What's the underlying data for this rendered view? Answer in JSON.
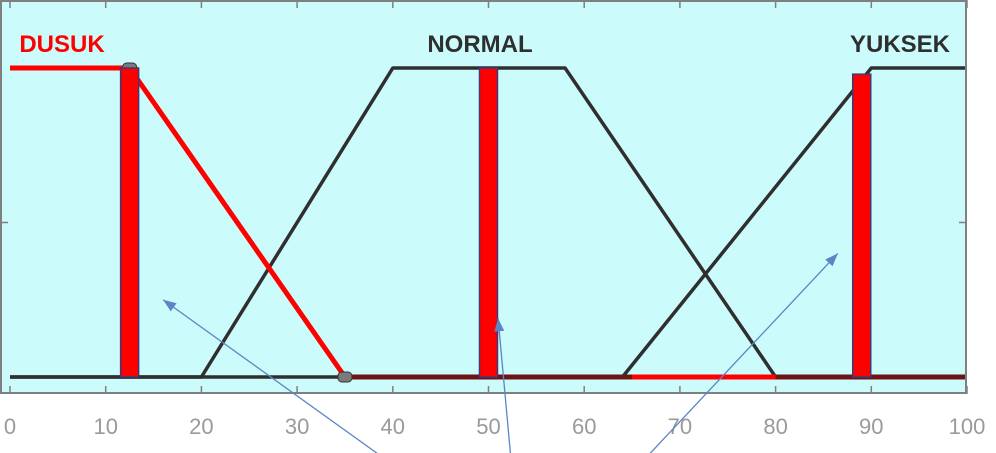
{
  "colors": {
    "background": "#ffffff",
    "plot_background": "#ccfbfb",
    "axes_border": "#7f7f7f",
    "mf_line": "#2f2f2f",
    "highlight": "#ff0000",
    "marker_bar": "#ff0000",
    "marker_edge": "#3b3b7a",
    "arrow": "#5b86c5",
    "tick_label": "#9a9a9a"
  },
  "chart_data": {
    "type": "line",
    "xlim": [
      0,
      100
    ],
    "ylim": [
      0,
      1
    ],
    "x_ticks": [
      0,
      10,
      20,
      30,
      40,
      50,
      60,
      70,
      80,
      90,
      100
    ],
    "x_tick_labels": [
      "0",
      "10",
      "20",
      "30",
      "40",
      "50",
      "60",
      "70",
      "80",
      "90",
      "100"
    ],
    "series": [
      {
        "name": "DUSUK",
        "label_color": "#ff0000",
        "highlighted": true,
        "points": [
          [
            0,
            1
          ],
          [
            12.5,
            1
          ],
          [
            35,
            0
          ],
          [
            100,
            0
          ]
        ]
      },
      {
        "name": "NORMAL",
        "label_color": "#2f2f2f",
        "highlighted": false,
        "points": [
          [
            0,
            0
          ],
          [
            20,
            0
          ],
          [
            40,
            1
          ],
          [
            58,
            1
          ],
          [
            80,
            0
          ],
          [
            100,
            0
          ]
        ]
      },
      {
        "name": "YUKSEK",
        "label_color": "#2f2f2f",
        "highlighted": false,
        "points": [
          [
            0,
            0
          ],
          [
            64,
            0
          ],
          [
            90,
            1
          ],
          [
            100,
            1
          ]
        ]
      }
    ],
    "highlight_segments": [
      [
        [
          65,
          0
        ],
        [
          80,
          0
        ]
      ]
    ],
    "markers": [
      {
        "x": 12.5,
        "y_top": 1
      },
      {
        "x": 50,
        "y_top": 1
      },
      {
        "x": 89,
        "y_top": 0.98
      }
    ],
    "arrows": [
      {
        "from": [
          38.5,
          -0.25
        ],
        "to": [
          16,
          0.25
        ]
      },
      {
        "from": [
          52.3,
          -0.25
        ],
        "to": [
          51,
          0.19
        ]
      },
      {
        "from": [
          66.8,
          -0.25
        ],
        "to": [
          86.5,
          0.4
        ]
      }
    ]
  }
}
